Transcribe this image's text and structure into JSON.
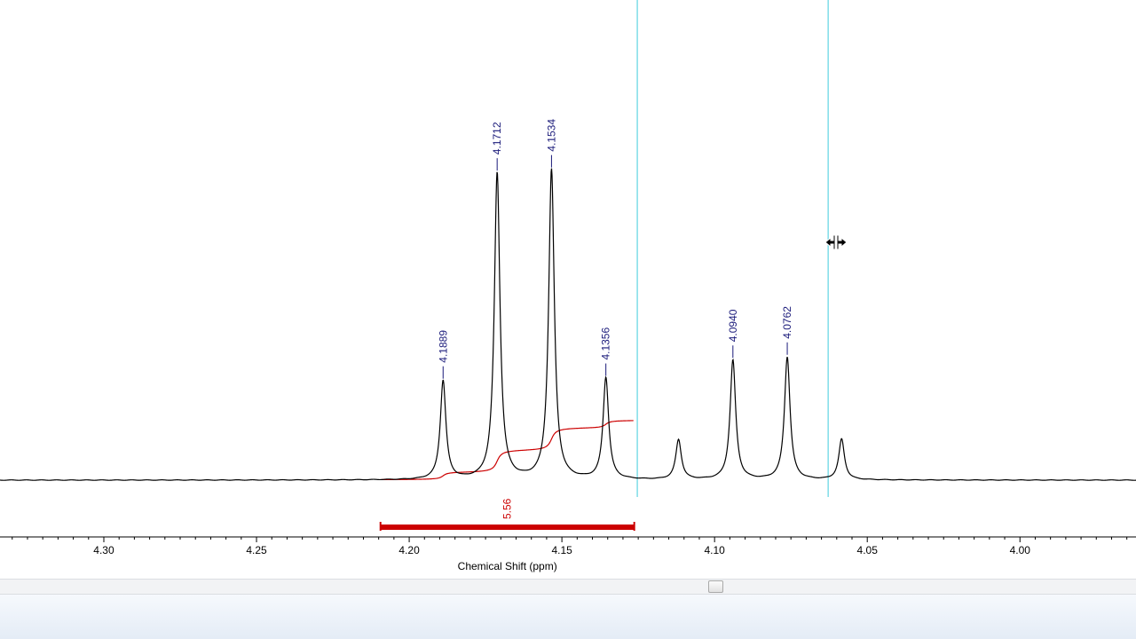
{
  "chart_data": {
    "type": "line",
    "xlabel": "Chemical Shift (ppm)",
    "ylabel": "",
    "xlim": [
      4.334,
      3.962
    ],
    "x_reversed": true,
    "x_ticks": [
      "4.30",
      "4.25",
      "4.20",
      "4.15",
      "4.10",
      "4.05",
      "4.00"
    ],
    "series": [
      {
        "type": "spectrum",
        "color": "#000000",
        "peaks": [
          {
            "x": 4.1889,
            "height": 0.318
          },
          {
            "x": 4.1712,
            "height": 0.988
          },
          {
            "x": 4.1534,
            "height": 0.998
          },
          {
            "x": 4.1356,
            "height": 0.327
          },
          {
            "x": 4.1118,
            "height": 0.128
          },
          {
            "x": 4.094,
            "height": 0.385
          },
          {
            "x": 4.0762,
            "height": 0.395
          },
          {
            "x": 4.0584,
            "height": 0.131
          }
        ]
      },
      {
        "type": "integral",
        "color": "#cc0000",
        "from": 4.2094,
        "to": 4.1263,
        "value": "5.56"
      }
    ],
    "peak_labels": [
      "4.1889",
      "4.1712",
      "4.1534",
      "4.1356",
      "4.0940",
      "4.0762"
    ],
    "cursor_lines": [
      4.1253,
      4.0628
    ],
    "cursor_color": "#7fdde8",
    "grid": false,
    "legend": "none"
  },
  "colors": {
    "integral": "#cc0000",
    "peak_label": "#1a1a7a",
    "axis": "#000000"
  },
  "icons": {
    "cursor": "resize-horizontal-cursor-icon"
  }
}
